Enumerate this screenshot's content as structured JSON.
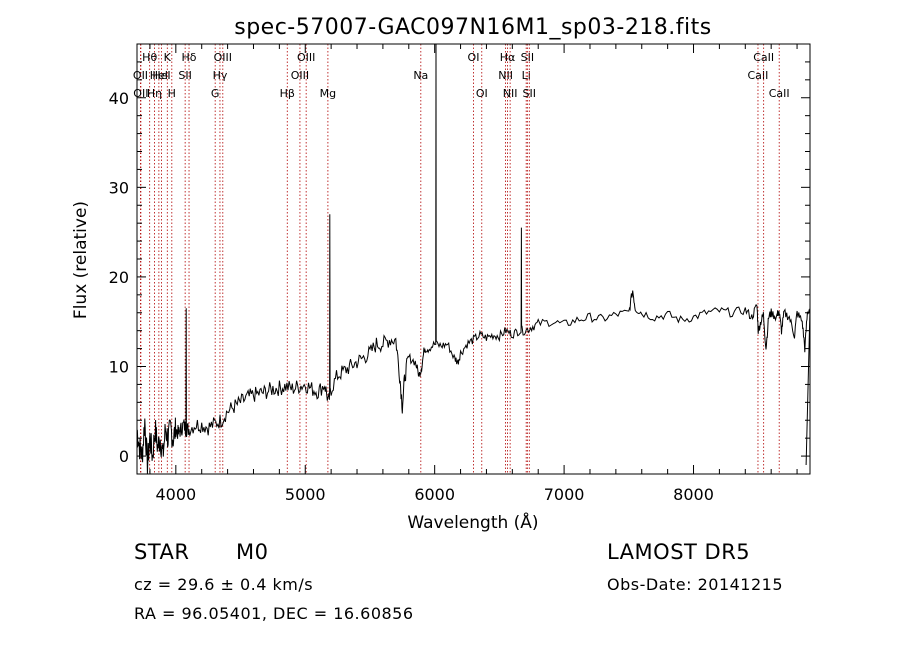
{
  "chart_data": {
    "type": "line",
    "title": "spec-57007-GAC097N16M1_sp03-218.fits",
    "xlabel": "Wavelength (Å)",
    "ylabel": "Flux (relative)",
    "xlim": [
      3700,
      8900
    ],
    "ylim": [
      -2,
      46
    ],
    "x_ticks": [
      4000,
      5000,
      6000,
      7000,
      8000
    ],
    "y_ticks": [
      0,
      10,
      20,
      30,
      40
    ],
    "grid": false,
    "legend": "none",
    "series": [
      {
        "x": [
          3700,
          3720,
          3740,
          3760,
          3780,
          3800,
          3820,
          3840,
          3860,
          3880,
          3900,
          3920,
          3940,
          3960,
          3980,
          4000,
          4020,
          4040,
          4060,
          4080,
          4100,
          4150,
          4200,
          4250,
          4300,
          4350,
          4400,
          4450,
          4500,
          4550,
          4600,
          4650,
          4700,
          4750,
          4800,
          4850,
          4900,
          4950,
          5000,
          5050,
          5100,
          5150,
          5180,
          5200,
          5250,
          5300,
          5350,
          5400,
          5450,
          5500,
          5550,
          5600,
          5650,
          5700,
          5730,
          5750,
          5770,
          5800,
          5850,
          5880,
          5900,
          5920,
          5950,
          6000,
          6050,
          6100,
          6150,
          6180,
          6200,
          6250,
          6300,
          6350,
          6400,
          6450,
          6500,
          6550,
          6600,
          6650,
          6700,
          6750,
          6800,
          6900,
          7000,
          7100,
          7200,
          7300,
          7400,
          7500,
          7530,
          7550,
          7600,
          7700,
          7800,
          7900,
          8000,
          8100,
          8200,
          8300,
          8400,
          8450,
          8490,
          8500,
          8520,
          8540,
          8560,
          8580,
          8600,
          8640,
          8660,
          8680,
          8700,
          8740,
          8780,
          8800,
          8840,
          8860,
          8880,
          8900
        ],
        "y": [
          3,
          1,
          0,
          4,
          -1,
          2,
          0,
          3,
          1,
          2,
          0,
          3,
          2,
          3,
          2,
          3,
          2.5,
          3,
          3.5,
          3,
          3,
          3.5,
          3.5,
          3.2,
          3.6,
          4,
          5,
          5.5,
          6,
          6.5,
          6.8,
          7,
          7.2,
          7.5,
          7.6,
          7.8,
          7.5,
          7.8,
          8,
          7.5,
          7.2,
          8,
          6,
          7.5,
          9,
          9.5,
          10,
          10.5,
          11,
          11.5,
          12.5,
          12.5,
          13,
          13,
          9,
          5.5,
          9,
          11,
          10.5,
          9,
          10,
          12,
          12,
          12.5,
          12.3,
          12.5,
          11,
          10.5,
          11.5,
          12.5,
          13,
          13.5,
          13.2,
          13.5,
          13.4,
          14,
          13.6,
          14,
          14,
          14.4,
          14.8,
          15,
          14.7,
          15.2,
          15.5,
          15.3,
          15.8,
          16,
          18.5,
          16.5,
          16,
          15.5,
          15.8,
          15.2,
          15.5,
          16,
          16.2,
          16,
          16.3,
          15.5,
          16.8,
          14,
          15,
          15.8,
          12,
          15.5,
          16,
          15.5,
          16.2,
          14,
          16,
          15.5,
          13.5,
          16,
          15,
          12,
          16,
          16.5
        ]
      }
    ],
    "spikes": [
      {
        "x": 4080,
        "y": 16.5
      },
      {
        "x": 5190,
        "y": 27
      },
      {
        "x": 6010,
        "y": 46
      },
      {
        "x": 6670,
        "y": 25.5
      }
    ],
    "drop": {
      "x": 8870,
      "y": -1
    },
    "line_markers": [
      {
        "x": 3798,
        "label": "Hθ",
        "row": 0
      },
      {
        "x": 3835,
        "label": "Hη",
        "row": 2
      },
      {
        "x": 3727,
        "label": "OII",
        "row": 1
      },
      {
        "x": 3730,
        "label": "OII",
        "row": 2
      },
      {
        "x": 3869,
        "label": "HeI",
        "row": 1
      },
      {
        "x": 3889,
        "label": "HeI",
        "row": 1
      },
      {
        "x": 3934,
        "label": "K",
        "row": 0
      },
      {
        "x": 3969,
        "label": "H",
        "row": 2
      },
      {
        "x": 4072,
        "label": "SII",
        "row": 1
      },
      {
        "x": 4102,
        "label": "Hδ",
        "row": 0
      },
      {
        "x": 4304,
        "label": "G",
        "row": 2
      },
      {
        "x": 4341,
        "label": "Hγ",
        "row": 1
      },
      {
        "x": 4363,
        "label": "OIII",
        "row": 0
      },
      {
        "x": 4861,
        "label": "Hβ",
        "row": 2
      },
      {
        "x": 4959,
        "label": "OIII",
        "row": 1
      },
      {
        "x": 5007,
        "label": "OIII",
        "row": 0
      },
      {
        "x": 5175,
        "label": "Mg",
        "row": 2
      },
      {
        "x": 5893,
        "label": "Na",
        "row": 1
      },
      {
        "x": 6300,
        "label": "OI",
        "row": 0
      },
      {
        "x": 6364,
        "label": "OI",
        "row": 2
      },
      {
        "x": 6548,
        "label": "NII",
        "row": 1
      },
      {
        "x": 6563,
        "label": "Hα",
        "row": 0
      },
      {
        "x": 6583,
        "label": "NII",
        "row": 2
      },
      {
        "x": 6707,
        "label": "Li",
        "row": 1
      },
      {
        "x": 6716,
        "label": "SII",
        "row": 0
      },
      {
        "x": 6731,
        "label": "SII",
        "row": 2
      },
      {
        "x": 8498,
        "label": "CaII",
        "row": 1
      },
      {
        "x": 8542,
        "label": "CaII",
        "row": 0
      },
      {
        "x": 8662,
        "label": "CaII",
        "row": 2
      }
    ]
  },
  "info": {
    "class": "STAR",
    "subclass": "M0",
    "survey": "LAMOST DR5",
    "cz": "cz = 29.6 ± 0.4 km/s",
    "obs_date": "Obs-Date: 20141215",
    "coords": "RA =  96.05401, DEC =  16.60856"
  },
  "colors": {
    "spectrum": "#000000",
    "marker_line": "#b00000",
    "axes": "#000000",
    "background": "#ffffff"
  }
}
